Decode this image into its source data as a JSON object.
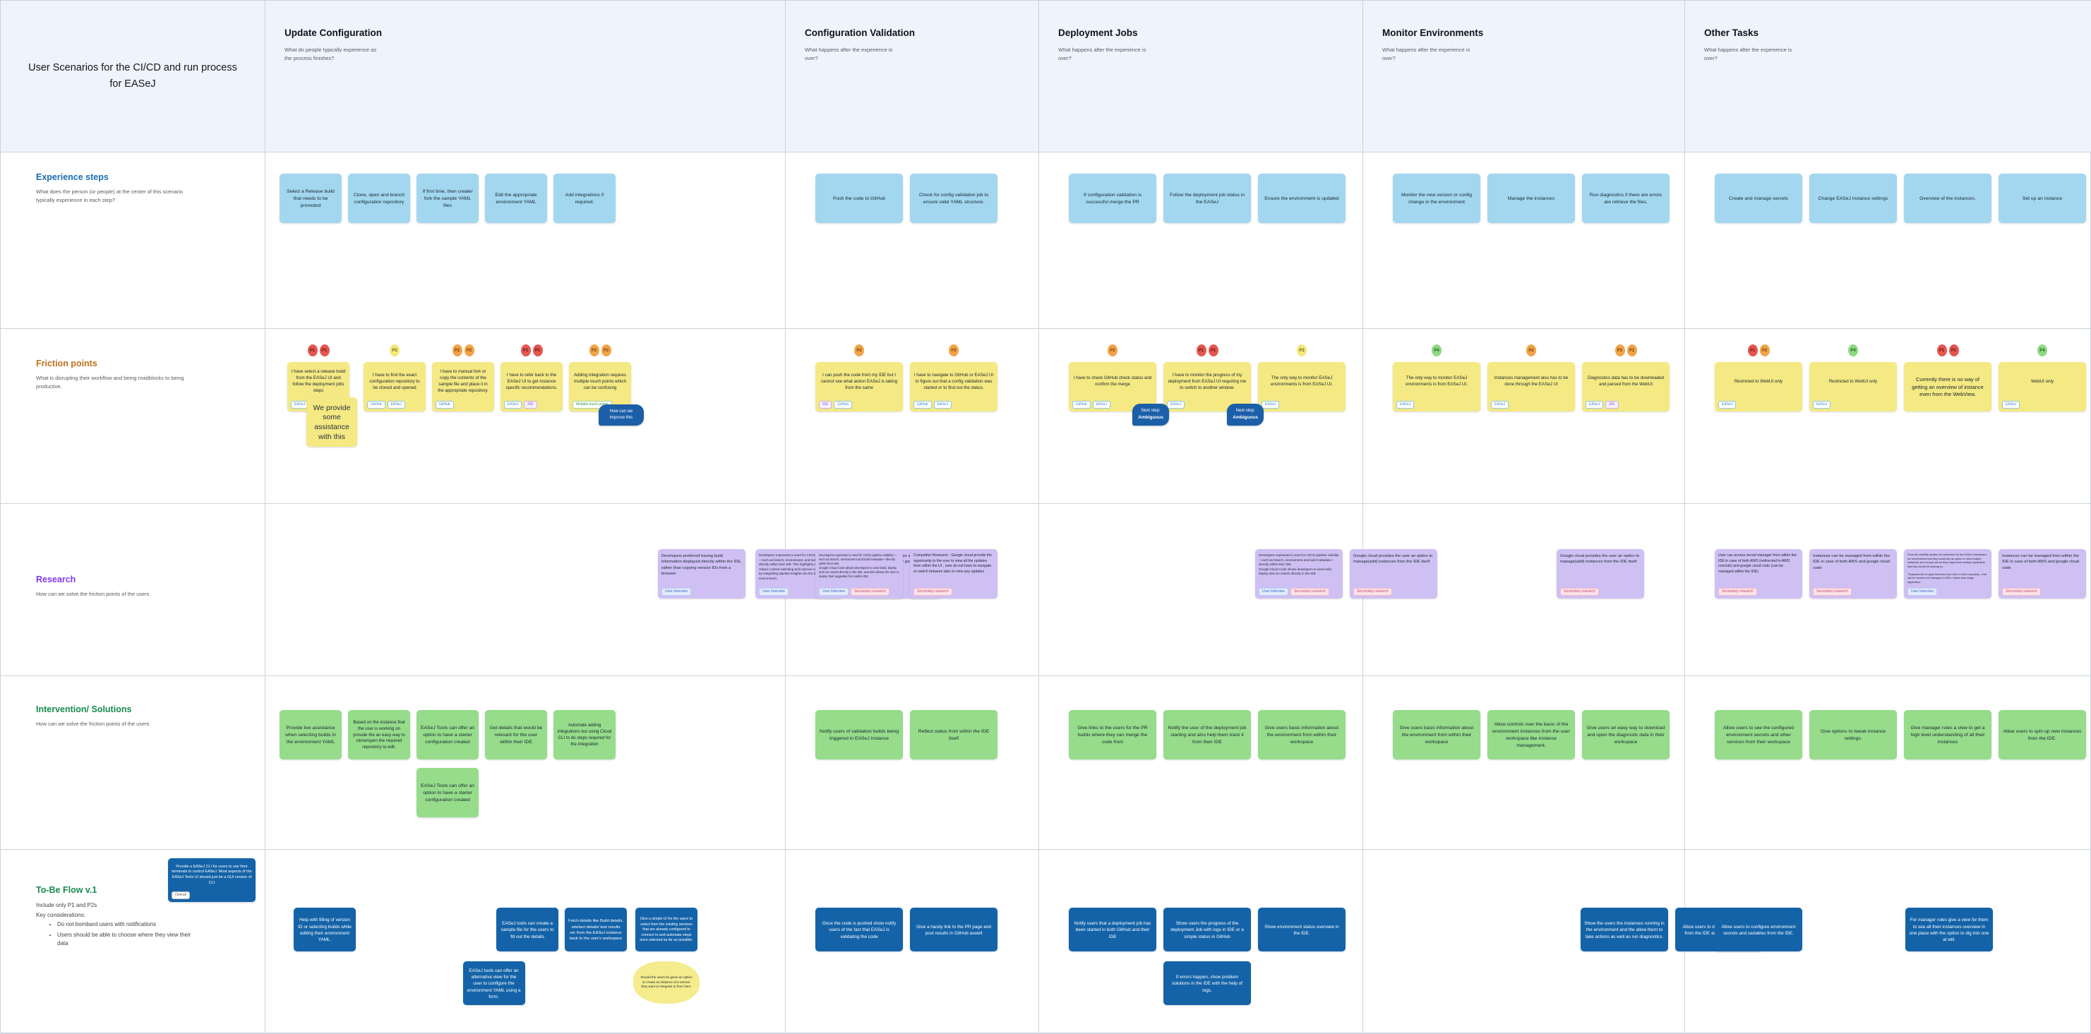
{
  "board": {
    "title": "User Scenarios for the CI/CD and run process for EASeJ",
    "columns": [
      {
        "title": "Update Configuration",
        "subtitle": "What do people typically experience as the process finishes?"
      },
      {
        "title": "Configuration Validation",
        "subtitle": "What happens after the experience is over?"
      },
      {
        "title": "Deployment Jobs",
        "subtitle": "What happens after the experience is over?"
      },
      {
        "title": "Monitor Environments",
        "subtitle": "What happens after the experience is over?"
      },
      {
        "title": "Other Tasks",
        "subtitle": "What happens after the experience is over?"
      }
    ]
  },
  "rows": {
    "experience": {
      "title": "Experience steps",
      "subtitle": "What does the person (or people) at the center of this scenario typically experience in each step?",
      "color": "#1b6cb3"
    },
    "friction": {
      "title": "Friction points",
      "subtitle": "What is disrupting their workflow and being roadblocks to being productive.",
      "color": "#c2701d"
    },
    "research": {
      "title": "Research",
      "subtitle": "How can we solve the friction points of the users",
      "color": "#7c3aed"
    },
    "solutions": {
      "title": "Intervention/ Solutions",
      "subtitle": "How can we solve the friction points of the users",
      "color": "#188a4e"
    },
    "tobe": {
      "title": "To-Be Flow v.1",
      "color": "#188a4e",
      "line1": "Include only P1 and P2s",
      "line2": "Key considerations:",
      "bullets": [
        "Do not bombard users with notifications",
        "Users should be able to choose where they view their data"
      ]
    }
  },
  "palette": {
    "sticky_blue": "#a3d7f0",
    "sticky_yellow": "#f4e983",
    "sticky_purple": "#cfc0f3",
    "sticky_green": "#96dc8b",
    "sticky_dark_blue": "#1463a8",
    "cloud_yellow": "#f5ec8e",
    "badge_p1": "#e4574f",
    "badge_p2": "#f2a348",
    "badge_p3": "#f2e97c",
    "badge_p4": "#8fd884",
    "header_bg": "#eff3fb",
    "grid_line": "#cdd2d9",
    "bubble_blue": "#1b5fa8"
  },
  "cells": {
    "tobe_label": {
      "color": "darkblue",
      "w": 124,
      "fs": 5.4,
      "groups": [
        {
          "text": "Provide a EASeJ CLI for users to use their terminals to control EASeJ. Most aspects of the EASeJ Tools UI should just be a GUI version of CLI",
          "tags": [
            "Overall"
          ]
        }
      ]
    },
    "experience_update": {
      "color": "blue",
      "w": 88,
      "fs": 6.8,
      "gap": 9,
      "groups": [
        {
          "text": "Select a Release build that needs to be promoted"
        },
        {
          "text": "Clone, open and branch configuration repository"
        },
        {
          "text": "If first time, then create/ fork the sample YAML files"
        },
        {
          "text": "Edit the appropriate environment YAML"
        },
        {
          "text": "Add integrations if required."
        }
      ]
    },
    "experience_validation": {
      "color": "blue",
      "w": 124,
      "fs": 6.8,
      "groups": [
        {
          "text": "Push the code to GitHub"
        },
        {
          "text": "Check for config validation job to ensure valid YAML structure."
        }
      ]
    },
    "experience_deployment": {
      "color": "blue",
      "w": 124,
      "fs": 6.8,
      "groups": [
        {
          "text": "If configuration validation is successful merge the PR"
        },
        {
          "text": "Follow the deployment job status in the EASeJ"
        },
        {
          "text": "Ensure the environment is updated"
        }
      ]
    },
    "experience_monitor": {
      "color": "blue",
      "w": 124,
      "fs": 6.8,
      "groups": [
        {
          "text": "Monitor the new version or config change in the environment"
        },
        {
          "text": "Manage the instances"
        },
        {
          "text": "Run diagnostics if there are errors are retrieve the files."
        }
      ]
    },
    "experience_other": {
      "color": "blue",
      "w": 124,
      "fs": 6.8,
      "groups": [
        {
          "text": "Create and manage secrets"
        },
        {
          "text": "Change EASeJ instance settings"
        },
        {
          "text": "Overview of the instances."
        },
        {
          "text": "Set up an instance"
        }
      ]
    },
    "friction_update": {
      "color": "yellow",
      "w": 88,
      "fs": 6.2,
      "gap": 9,
      "groups": [
        {
          "badges": [
            "P1",
            "P1"
          ],
          "text": "I have select a release build from the EASeJ UI and follow the deployment jobs steps",
          "tags": [
            "EASeJ"
          ],
          "under": {
            "text": "We provide some assistance with this",
            "w": 72,
            "big": true,
            "mt": -20,
            "ml": 38
          }
        },
        {
          "badges": [
            "P3"
          ],
          "text": "I have to find the exact configuration repository to be cloned and opened",
          "tags": [
            "GitHub",
            "EASeJ"
          ]
        },
        {
          "badges": [
            "P2",
            "P2"
          ],
          "text": "I have to manual fork or copy the contents of the sample file and place it in the appropriate repository.",
          "tags": [
            "GitHub"
          ]
        },
        {
          "badges": [
            "P1",
            "P1"
          ],
          "text": "I have to refer back to the EASeJ UI to get instance specific recommendations.",
          "tags": [
            "EASeJ",
            "IDE"
          ]
        },
        {
          "badges": [
            "P2",
            "P2"
          ],
          "text": "Adding integration requires multiple touch points which can be confusing",
          "tags": [
            "Multiple touch points"
          ],
          "bubble": {
            "text": "How can we improve this"
          }
        }
      ]
    },
    "friction_validation": {
      "color": "yellow",
      "w": 124,
      "fs": 6.2,
      "groups": [
        {
          "badges": [
            "P2"
          ],
          "text": "I can push the code from my IDE but I cannot see what action EASeJ is taking from the same",
          "tags": [
            "IDE",
            "GitHub"
          ]
        },
        {
          "badges": [
            "P2"
          ],
          "text": "I have to navigate to GitHub or EASeJ UI to figure out that a config validation was started or to find out the status.",
          "tags": [
            "GitHub",
            "EASeJ"
          ]
        }
      ]
    },
    "friction_deployment": {
      "color": "yellow",
      "w": 124,
      "fs": 6.2,
      "groups": [
        {
          "badges": [
            "P2"
          ],
          "text": "I have to check GitHub check status and confirm the merge",
          "tags": [
            "GitHub",
            "EASeJ"
          ],
          "bubble": {
            "pre": "Next step:",
            "bold": "Ambiguous"
          }
        },
        {
          "badges": [
            "P1",
            "P1"
          ],
          "text": "I have to monitor the progress of my deployment from EASeJ UI requiring me to switch to another window.",
          "tags": [
            "EASeJ"
          ],
          "bubble": {
            "pre": "Next step:",
            "bold": "Ambiguous"
          }
        },
        {
          "badges": [
            "P3"
          ],
          "text": "The only way to monitor EASeJ environments is from EASeJ UI.",
          "tags": [
            "EASeJ"
          ]
        }
      ]
    },
    "friction_monitor": {
      "color": "yellow",
      "w": 124,
      "fs": 6.2,
      "groups": [
        {
          "badges": [
            "P4"
          ],
          "text": "The only way to monitor EASeJ environments is from EASeJ UI.",
          "tags": [
            "EASeJ"
          ]
        },
        {
          "badges": [
            "P2"
          ],
          "text": "Instances management also has to be done through the EASeJ UI",
          "tags": [
            "EASeJ"
          ]
        },
        {
          "badges": [
            "P2",
            "P2"
          ],
          "text": "Diagnostics data has to be downloaded and parsed from the WebUI",
          "tags": [
            "EASeJ",
            "IDE"
          ]
        }
      ]
    },
    "friction_other": {
      "color": "yellow",
      "w": 124,
      "fs": 6.2,
      "groups": [
        {
          "badges": [
            "P1",
            "P2"
          ],
          "text": "Restricted to WebUI only",
          "tags": [
            "EASeJ"
          ]
        },
        {
          "badges": [
            "P4"
          ],
          "text": "Restricted to WebUI only",
          "tags": [
            "EASeJ"
          ]
        },
        {
          "badges": [
            "P1",
            "P1"
          ],
          "text": "Currently there is no way of getting an overview of instance even from the WebView.",
          "fs": 7.4
        },
        {
          "badges": [
            "P4"
          ],
          "text": "WebUI only",
          "tags": [
            "EASeJ"
          ]
        }
      ]
    },
    "research_update": {
      "color": "purple",
      "w": 124,
      "fs": 5.8,
      "gap": 14,
      "groups": [
        {
          "ml": 268,
          "text": "Developers preferred having build information displayed directly within the IDE, rather than copying version IDs from a browser",
          "tags": [
            "User Interview"
          ]
        },
        {
          "text": "Developers expressed a need for CI/CD pipeline visibility—such as branch, environment, and build metadata—directly within their IDE. This highlights an opportunity to reduce context switching and improve workflow efficiency by integrating pipeline insights into the development environment.",
          "tags": [
            "User Interview"
          ],
          "fs": 4.5
        },
        {
          "text": "Google cloud code provides an option to connect to clusters(mainly google) from within the IDE",
          "tags": [
            "Secondary research"
          ]
        }
      ]
    },
    "research_validation": {
      "color": "purple",
      "w": 124,
      "fs": 5.8,
      "groups": [
        {
          "text": "Developers expressed a need for CI/CD pipeline visibility—such as branch, environment and build metadata—directly within their IDE.\nGoogle Cloud Code allows developers to view build, deploy and run events directly in the IDE, and also allows the user to deploy their upgrades from within IDE",
          "tags": [
            "User Interview",
            "Secondary research"
          ],
          "fs": 4.2
        },
        {
          "text": "Competitor Research : Google cloud provide the opportunity to the user to view all the updates from within the UI , user do not have to navigate or switch between tabs to view any updates",
          "tags": [
            "Secondary research"
          ],
          "fs": 5.2
        }
      ]
    },
    "research_deployment": {
      "color": "purple",
      "w": 124,
      "fs": 5.8,
      "groups": [
        {
          "ml": 132,
          "text": "Developers expressed a need for CI/CD pipeline visibility—such as branch, environment and build metadata—directly within their IDE.\nGoogle Cloud Code shows developers to view build, deploy and run events directly in the IDE",
          "tags": [
            "User Interview",
            "Secondary research"
          ],
          "fs": 4.5
        },
        {
          "text": "Google cloud provides the user an option to manage(add) instances from the IDE itself",
          "tags": [
            "Secondary research"
          ]
        }
      ]
    },
    "research_monitor": {
      "color": "purple",
      "w": 124,
      "fs": 5.8,
      "groups": [
        {
          "ml": 116,
          "text": "Google cloud provides the user an option to manage(add) instances from the IDE itself",
          "tags": [
            "Secondary research"
          ]
        }
      ]
    },
    "research_other": {
      "color": "purple",
      "w": 124,
      "fs": 5.8,
      "groups": [
        {
          "text": "User can access secret manager from within the IDE in case of both AWS (redirected to AWS console) and google cloud code (can be managed within the IDE)",
          "tags": [
            "Secondary research"
          ],
          "fs": 5.2
        },
        {
          "text": "Instances can be managed from within the IDE in case of both AWS and google cloud code",
          "tags": [
            "Secondary research"
          ]
        },
        {
          "text": "From the usability studies we conducted for the EASeJ Dashboard, we remembered that they would like an option to view multiple instances and not just one as they might have multiple application that they would be working on.\n\n\"Expanded list of apps that they have seen in their repository - that can be viewed and managed in IDEs / rather than single application\"",
          "tags": [
            "User Interview"
          ],
          "fs": 3.8
        },
        {
          "text": "Instances can be managed from within the IDE in case of both AWS and google cloud code",
          "tags": [
            "Secondary research"
          ]
        }
      ]
    },
    "solutions_update": {
      "color": "green",
      "w": 88,
      "fs": 6.8,
      "gap": 9,
      "groups": [
        {
          "text": "Provide live assistance when selecting builds in the environment YAML"
        },
        {
          "text": "Based on the instance that the user is working on provide the an easy way to clone/open the required repository to edit.",
          "fs": 6.2
        },
        {
          "text": "EASeJ Tools can offer an option to have a starter configuration created",
          "under": {
            "text": "EASeJ Tools can offer an option to have a starter configuration created",
            "mt": 12
          }
        },
        {
          "text": "Get details that would be relevant for the user within their IDE"
        },
        {
          "text": "Automate adding integrations but using Cloud CLI to do steps required for the integration",
          "fs": 6.2
        }
      ]
    },
    "solutions_validation": {
      "color": "green",
      "w": 124,
      "fs": 6.8,
      "groups": [
        {
          "text": "Notify users of validation builds being triggered in EASeJ instance"
        },
        {
          "text": "Reflect status from within the IDE itself"
        }
      ]
    },
    "solutions_deployment": {
      "color": "green",
      "w": 124,
      "fs": 6.8,
      "groups": [
        {
          "text": "Give links to the users for the PR builds where they can merge the code from"
        },
        {
          "text": "Notify the user of the deployment job starting and also help them track it from their IDE"
        },
        {
          "text": "Give users basic information about the environment from within their workspace"
        }
      ]
    },
    "solutions_monitor": {
      "color": "green",
      "w": 124,
      "fs": 6.8,
      "groups": [
        {
          "text": "Give users basic information about the environment from within their workspace"
        },
        {
          "text": "Allow controls over the basic of the environment instances from the user workspace like instance management."
        },
        {
          "text": "Give users an easy way to download and open the diagnostic data in their workspace"
        }
      ]
    },
    "solutions_other": {
      "color": "green",
      "w": 124,
      "fs": 6.8,
      "groups": [
        {
          "text": "Allow users to see the configured environment secrets and other services from their workspace"
        },
        {
          "text": "Give options to tweak instance settings."
        },
        {
          "text": "Give manager roles a view to get a high level understanding of all their instances"
        },
        {
          "text": "Allow users to spin up new instances from the IDE."
        }
      ]
    },
    "tobe_update": {
      "color": "darkblue",
      "w": 88,
      "fs": 6.4,
      "gap": 9,
      "groups": [
        {
          "ml": 10,
          "text": "Help with filling of version ID or selecting builds while editing their environment YAML."
        },
        {
          "ml": 95,
          "text": "EASeJ tools can create a sample file for the users to fill out the details",
          "under": {
            "text": "EASeJ tools can offer an alternative view for the user to configure the environment YAML using a form.",
            "mt": 14
          }
        },
        {
          "text": "Fetch details like Build details, artefact details/ test results etc from the EASeJ instance back to the user's workspace",
          "fs": 5.8
        },
        {
          "text": "Give a simple UI for the users to select from the existing services that are already configured to connect to and automate steps once selected as far as possible.",
          "fs": 5.2,
          "under": {
            "cloud": true,
            "color": "cloud",
            "text": "Should the users be given an option to create an instance of a service they want to integrate to from here.",
            "fs": 4.6,
            "w": 94,
            "mt": 14
          }
        }
      ]
    },
    "tobe_validation": {
      "color": "darkblue",
      "w": 124,
      "fs": 6.4,
      "groups": [
        {
          "text": "Once the code is pushed show notify users of the fact that EASeJ is validating the code"
        },
        {
          "text": "Give a handy link to the PR page and post results in GitHub aswell"
        }
      ]
    },
    "tobe_deployment": {
      "color": "darkblue",
      "w": 124,
      "fs": 6.4,
      "groups": [
        {
          "text": "Notify users that a deployment job has been started in both GitHub and their IDE"
        },
        {
          "text": "Show users the progress of the deployment Job with logs in IDE or a simple status in GitHub",
          "under": {
            "text": "If errors happen, show problem solutions in the IDE with the help of logs.",
            "mt": 14
          }
        },
        {
          "text": "Show environment status overview in the IDE."
        }
      ]
    },
    "tobe_monitor": {
      "color": "darkblue",
      "w": 124,
      "fs": 6.4,
      "groups": [
        {
          "ml": 133,
          "text": "Show the users the instances running in the environment and the allow them to take actions as well as run diagnostics."
        },
        {
          "text": "Allow users to download diagnostics from the IDE and help solve errors"
        }
      ]
    },
    "tobe_other": {
      "color": "darkblue",
      "w": 124,
      "fs": 6.4,
      "groups": [
        {
          "text": "Allow users to configure environment secrets and variables from the IDE."
        },
        {
          "ml": 68,
          "text": "For manager roles give a view for them to see all their instances overview in one place with the option to dig into one at will."
        }
      ]
    }
  }
}
